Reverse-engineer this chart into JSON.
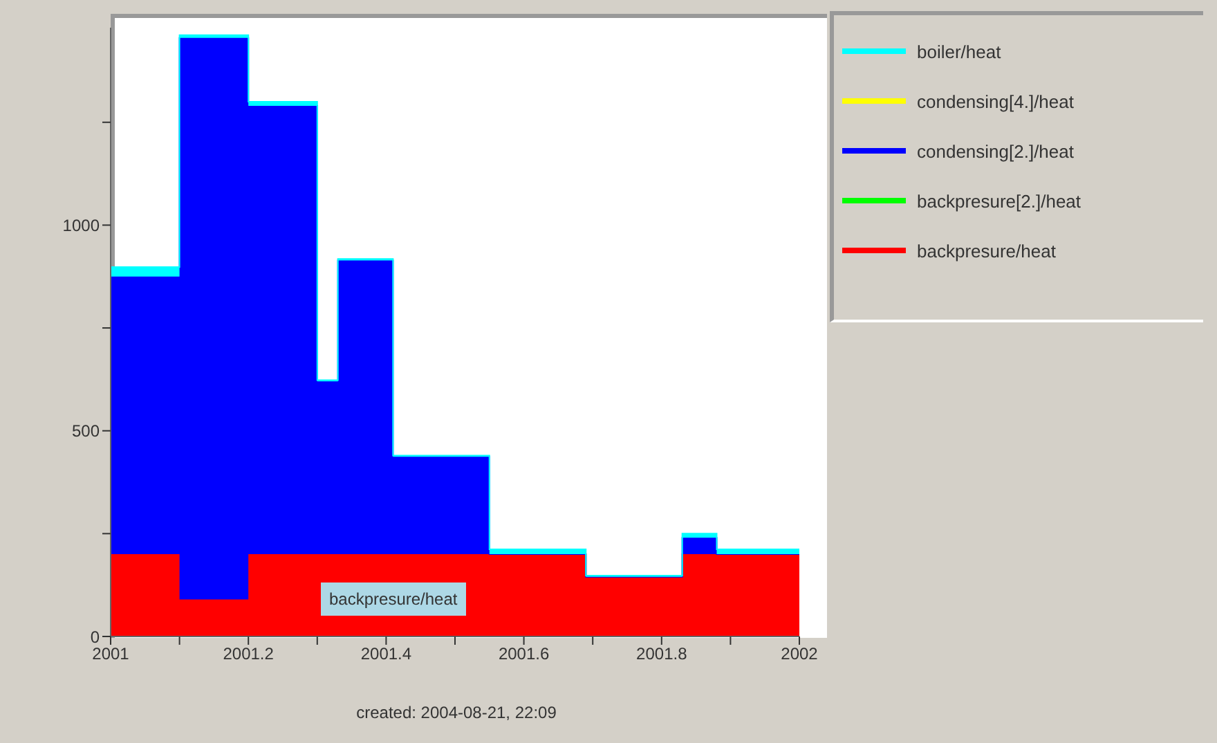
{
  "chart_data": {
    "type": "area",
    "stacked": true,
    "x": [
      2001,
      2001.1,
      2001.1,
      2001.2,
      2001.2,
      2001.3,
      2001.3,
      2001.33,
      2001.33,
      2001.41,
      2001.41,
      2001.55,
      2001.55,
      2001.69,
      2001.69,
      2001.83,
      2001.83,
      2001.88,
      2001.88,
      2002
    ],
    "series": [
      {
        "name": "backpresure/heat",
        "color": "#ff0000",
        "values": [
          200,
          200,
          90,
          90,
          200,
          200,
          200,
          200,
          200,
          200,
          200,
          200,
          200,
          200,
          145,
          145,
          200,
          200,
          200,
          200
        ]
      },
      {
        "name": "backpresure[2.]/heat",
        "color": "#00ff00",
        "values": [
          null,
          null,
          null,
          null,
          null,
          null,
          null,
          null,
          null,
          null,
          null,
          null,
          null,
          null,
          null,
          null,
          null,
          null,
          null,
          null
        ]
      },
      {
        "name": "condensing[2.]/heat",
        "color": "#0000ff",
        "values": [
          675,
          675,
          1365,
          1365,
          1090,
          1090,
          420,
          420,
          714,
          714,
          237,
          237,
          0,
          0,
          0,
          0,
          40,
          40,
          0,
          0
        ]
      },
      {
        "name": "condensing[4.]/heat",
        "color": "#ffff00",
        "values": [
          null,
          null,
          null,
          null,
          null,
          null,
          null,
          null,
          null,
          null,
          null,
          null,
          null,
          null,
          null,
          null,
          null,
          null,
          null,
          null
        ]
      },
      {
        "name": "boiler/heat",
        "color": "#00ffff",
        "values": [
          23,
          23,
          7,
          7,
          10,
          10,
          3,
          3,
          4,
          4,
          3,
          3,
          12,
          12,
          3,
          3,
          10,
          10,
          12,
          12
        ]
      }
    ],
    "xlim": [
      2001,
      2002
    ],
    "xticks": [
      2001,
      {
        "value": 2001.1,
        "label": null
      },
      2001.2,
      {
        "value": 2001.3,
        "label": null
      },
      2001.4,
      {
        "value": 2001.5,
        "label": null
      },
      2001.6,
      {
        "value": 2001.7,
        "label": null
      },
      2001.8,
      {
        "value": 2001.9,
        "label": null
      },
      2002
    ],
    "ylim": [
      0,
      1480
    ],
    "yticks": [
      0,
      {
        "value": 250,
        "label": null
      },
      500,
      {
        "value": 750,
        "label": null
      },
      1000,
      {
        "value": 1250,
        "label": null
      }
    ],
    "legend": "right",
    "annotations": [
      "backpresure/heat",
      "created: 2004-08-21, 22:09"
    ]
  }
}
